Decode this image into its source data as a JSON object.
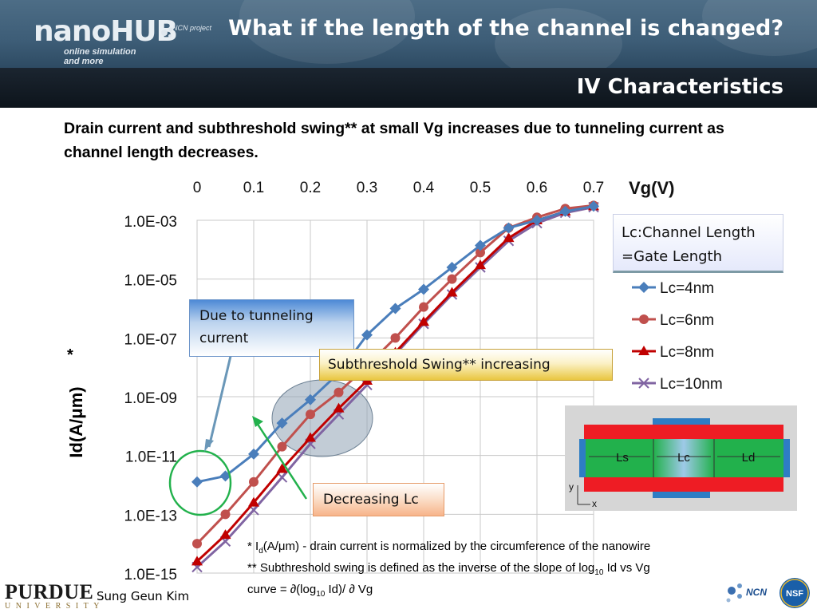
{
  "header": {
    "logo": "nanoHUB",
    "logo_sub": "online simulation and more",
    "ncn_text": "NCN project",
    "title": "What if the length of the channel is changed?",
    "subtitle": "IV Characteristics"
  },
  "intro": "Drain current and subthreshold swing** at small Vg increases due to tunneling current as channel length decreases.",
  "chart_data": {
    "type": "line",
    "xlabel": "Vg(V)",
    "ylabel": "Id(A/μm)",
    "ylabel_mark": "*",
    "xlim": [
      0,
      0.7
    ],
    "ylim": [
      1e-15,
      0.001
    ],
    "yscale": "log",
    "x_ticks": [
      "0",
      "0.1",
      "0.2",
      "0.3",
      "0.4",
      "0.5",
      "0.6",
      "0.7"
    ],
    "y_ticks": [
      "1.0E-15",
      "1.0E-13",
      "1.0E-11",
      "1.0E-09",
      "1.0E-07",
      "1.0E-05",
      "1.0E-03"
    ],
    "x_axis_position": "top",
    "grid": true,
    "legend_placement": "right",
    "series": [
      {
        "name": "Lc=4nm",
        "color": "#4a7ebb",
        "marker": "diamond",
        "x": [
          0,
          0.05,
          0.1,
          0.15,
          0.2,
          0.25,
          0.3,
          0.35,
          0.4,
          0.45,
          0.5,
          0.55,
          0.6,
          0.65,
          0.7
        ],
        "y": [
          1.26e-12,
          2e-12,
          1.12e-11,
          1.26e-10,
          7.9e-10,
          6.3e-09,
          1.26e-07,
          1e-06,
          4.5e-06,
          2.5e-05,
          0.00014,
          0.00055,
          0.001,
          0.002,
          0.003
        ]
      },
      {
        "name": "Lc=6nm",
        "color": "#c0504d",
        "marker": "circle",
        "x": [
          0,
          0.05,
          0.1,
          0.15,
          0.2,
          0.25,
          0.3,
          0.35,
          0.4,
          0.45,
          0.5,
          0.55,
          0.6,
          0.65,
          0.7
        ],
        "y": [
          1e-14,
          1e-13,
          1.26e-12,
          2e-11,
          2.5e-10,
          1.4e-09,
          1.12e-08,
          1e-07,
          1.12e-06,
          1e-05,
          8e-05,
          0.00055,
          0.00126,
          0.0025,
          0.0032
        ]
      },
      {
        "name": "Lc=8nm",
        "color": "#c00000",
        "marker": "triangle",
        "x": [
          0,
          0.05,
          0.1,
          0.15,
          0.2,
          0.25,
          0.3,
          0.35,
          0.4,
          0.45,
          0.5,
          0.55,
          0.6,
          0.65,
          0.7
        ],
        "y": [
          2.5e-15,
          2e-14,
          2.5e-13,
          3.5e-12,
          4e-11,
          4e-10,
          3.5e-09,
          3.2e-08,
          3.5e-07,
          3.5e-06,
          3e-05,
          0.00025,
          0.001,
          0.002,
          0.003
        ]
      },
      {
        "name": "Lc=10nm",
        "color": "#8064a2",
        "marker": "x",
        "x": [
          0,
          0.05,
          0.1,
          0.15,
          0.2,
          0.25,
          0.3,
          0.35,
          0.4,
          0.45,
          0.5,
          0.55,
          0.6,
          0.65,
          0.7
        ],
        "y": [
          1.6e-15,
          1.2e-14,
          1.4e-13,
          1.8e-12,
          2.5e-11,
          2.5e-10,
          2.5e-09,
          2.8e-08,
          3e-07,
          3e-06,
          2.5e-05,
          0.0002,
          0.0008,
          0.0018,
          0.0028
        ]
      }
    ]
  },
  "legend_title": "Lc:Channel Length =Gate Length",
  "callouts": {
    "tunnel": "Due to tunneling current",
    "swing": "Subthreshold Swing** increasing",
    "decreasing": "Decreasing Lc"
  },
  "device": {
    "ls": "Ls",
    "lc": "Lc",
    "ld": "Ld",
    "axis_y": "y",
    "axis_x": "x"
  },
  "notes": {
    "line1_star": "* ",
    "line1_I": "I",
    "line1_sub": "d",
    "line1_rest": "(A/μm) - drain current is normalized by the circumference of the nanowire",
    "line2_a": "** Subthreshold swing is defined as the inverse of the slope of log",
    "line2_sub": "10",
    "line2_b": " Id vs Vg",
    "line3_a": "curve = ∂(log",
    "line3_sub": "10",
    "line3_b": " Id)/ ∂ Vg"
  },
  "footer": {
    "purdue_big": "PURDUE",
    "purdue_small": "UNIVERSITY",
    "author": "Sung Geun Kim",
    "ncn_logo": "NCN",
    "nsf_logo": "NSF"
  }
}
